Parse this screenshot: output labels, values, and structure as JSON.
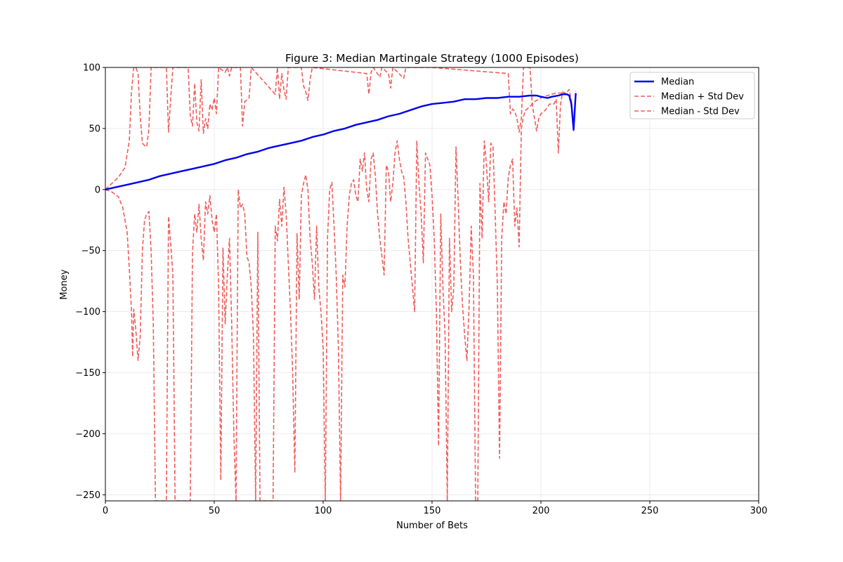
{
  "chart_data": {
    "type": "line",
    "title": "Figure 3: Median Martingale Strategy (1000 Episodes)",
    "xlabel": "Number of Bets",
    "ylabel": "Money",
    "xlim": [
      0,
      300
    ],
    "ylim": [
      -255,
      100
    ],
    "xticks": [
      "0",
      "50",
      "100",
      "150",
      "200",
      "250",
      "300"
    ],
    "yticks": [
      "100",
      "50",
      "0",
      "−50",
      "−100",
      "−150",
      "−200",
      "−250"
    ],
    "grid": true,
    "legend_position": "top-right",
    "colors": {
      "median": "#0000ee",
      "std": "#ee3333"
    },
    "series": [
      {
        "name": "Median",
        "style": "solid",
        "points": [
          [
            0,
            0
          ],
          [
            5,
            2
          ],
          [
            10,
            4
          ],
          [
            15,
            6
          ],
          [
            20,
            8
          ],
          [
            25,
            11
          ],
          [
            30,
            13
          ],
          [
            35,
            15
          ],
          [
            40,
            17
          ],
          [
            45,
            19
          ],
          [
            50,
            21
          ],
          [
            55,
            24
          ],
          [
            60,
            26
          ],
          [
            65,
            29
          ],
          [
            70,
            31
          ],
          [
            75,
            34
          ],
          [
            80,
            36
          ],
          [
            85,
            38
          ],
          [
            90,
            40
          ],
          [
            95,
            43
          ],
          [
            100,
            45
          ],
          [
            105,
            48
          ],
          [
            110,
            50
          ],
          [
            115,
            53
          ],
          [
            120,
            55
          ],
          [
            125,
            57
          ],
          [
            130,
            60
          ],
          [
            135,
            62
          ],
          [
            140,
            65
          ],
          [
            145,
            68
          ],
          [
            150,
            70
          ],
          [
            155,
            71
          ],
          [
            160,
            72
          ],
          [
            165,
            74
          ],
          [
            170,
            74
          ],
          [
            175,
            75
          ],
          [
            180,
            75
          ],
          [
            185,
            76
          ],
          [
            190,
            76
          ],
          [
            195,
            77
          ],
          [
            198,
            77
          ],
          [
            200,
            76
          ],
          [
            203,
            75
          ],
          [
            205,
            76
          ],
          [
            208,
            77
          ],
          [
            210,
            78
          ],
          [
            212,
            78
          ],
          [
            213,
            77
          ],
          [
            214,
            70
          ],
          [
            215,
            49
          ],
          [
            216,
            79
          ]
        ]
      },
      {
        "name": "Median + Std Dev",
        "style": "dashed",
        "points": [
          [
            0,
            0
          ],
          [
            3,
            5
          ],
          [
            6,
            10
          ],
          [
            9,
            18
          ],
          [
            11,
            40
          ],
          [
            12,
            80
          ],
          [
            13,
            100
          ],
          [
            14,
            100
          ],
          [
            15,
            95
          ],
          [
            16,
            60
          ],
          [
            17,
            38
          ],
          [
            18,
            36
          ],
          [
            19,
            35
          ],
          [
            20,
            50
          ],
          [
            21,
            100
          ],
          [
            25,
            100
          ],
          [
            28,
            100
          ],
          [
            29,
            47
          ],
          [
            30,
            75
          ],
          [
            31,
            100
          ],
          [
            38,
            100
          ],
          [
            39,
            60
          ],
          [
            40,
            52
          ],
          [
            41,
            87
          ],
          [
            42,
            55
          ],
          [
            43,
            48
          ],
          [
            44,
            90
          ],
          [
            45,
            46
          ],
          [
            46,
            58
          ],
          [
            47,
            50
          ],
          [
            48,
            70
          ],
          [
            49,
            65
          ],
          [
            50,
            75
          ],
          [
            51,
            62
          ],
          [
            52,
            100
          ],
          [
            55,
            96
          ],
          [
            56,
            100
          ],
          [
            57,
            93
          ],
          [
            58,
            100
          ],
          [
            62,
            100
          ],
          [
            63,
            52
          ],
          [
            64,
            72
          ],
          [
            66,
            75
          ],
          [
            67,
            100
          ],
          [
            78,
            78
          ],
          [
            79,
            100
          ],
          [
            80,
            74
          ],
          [
            81,
            95
          ],
          [
            82,
            82
          ],
          [
            83,
            74
          ],
          [
            84,
            100
          ],
          [
            90,
            100
          ],
          [
            91,
            85
          ],
          [
            92,
            80
          ],
          [
            93,
            73
          ],
          [
            94,
            90
          ],
          [
            95,
            100
          ],
          [
            120,
            95
          ],
          [
            121,
            78
          ],
          [
            122,
            96
          ],
          [
            123,
            100
          ],
          [
            126,
            92
          ],
          [
            127,
            100
          ],
          [
            130,
            95
          ],
          [
            131,
            83
          ],
          [
            132,
            100
          ],
          [
            137,
            91
          ],
          [
            138,
            100
          ],
          [
            143,
            100
          ],
          [
            150,
            100
          ],
          [
            185,
            95
          ],
          [
            186,
            62
          ],
          [
            187,
            66
          ],
          [
            188,
            64
          ],
          [
            189,
            58
          ],
          [
            190,
            47
          ],
          [
            191,
            58
          ],
          [
            192,
            100
          ],
          [
            195,
            100
          ],
          [
            196,
            70
          ],
          [
            198,
            48
          ],
          [
            199,
            58
          ],
          [
            200,
            62
          ],
          [
            202,
            65
          ],
          [
            204,
            70
          ],
          [
            206,
            70
          ],
          [
            207,
            74
          ],
          [
            208,
            30
          ],
          [
            209,
            70
          ],
          [
            210,
            80
          ],
          [
            211,
            79
          ],
          [
            212,
            80
          ],
          [
            213,
            82
          ],
          [
            214,
            72
          ],
          [
            215,
            49
          ],
          [
            216,
            81
          ]
        ]
      },
      {
        "name": "Median - Std Dev",
        "style": "dashed",
        "points": [
          [
            0,
            0
          ],
          [
            3,
            -2
          ],
          [
            6,
            -6
          ],
          [
            8,
            -15
          ],
          [
            10,
            -35
          ],
          [
            11,
            -65
          ],
          [
            12,
            -100
          ],
          [
            12.5,
            -137
          ],
          [
            13,
            -98
          ],
          [
            14,
            -115
          ],
          [
            15,
            -140
          ],
          [
            16,
            -120
          ],
          [
            17,
            -50
          ],
          [
            18,
            -25
          ],
          [
            19,
            -20
          ],
          [
            20,
            -18
          ],
          [
            21,
            -50
          ],
          [
            22,
            -110
          ],
          [
            23,
            -255
          ],
          [
            28,
            -255
          ],
          [
            29,
            -22
          ],
          [
            30,
            -45
          ],
          [
            31,
            -70
          ],
          [
            32,
            -255
          ],
          [
            39,
            -255
          ],
          [
            40,
            -52
          ],
          [
            41,
            -20
          ],
          [
            42,
            -35
          ],
          [
            43,
            -12
          ],
          [
            44,
            -40
          ],
          [
            45,
            -58
          ],
          [
            46,
            -10
          ],
          [
            47,
            -20
          ],
          [
            48,
            -5
          ],
          [
            49,
            -25
          ],
          [
            50,
            -35
          ],
          [
            51,
            -20
          ],
          [
            52,
            -80
          ],
          [
            53,
            -238
          ],
          [
            54,
            -48
          ],
          [
            55,
            -110
          ],
          [
            56,
            -70
          ],
          [
            57,
            -40
          ],
          [
            58,
            -110
          ],
          [
            59,
            -200
          ],
          [
            60,
            -255
          ],
          [
            61,
            0
          ],
          [
            62,
            -15
          ],
          [
            63,
            -12
          ],
          [
            64,
            -20
          ],
          [
            65,
            -55
          ],
          [
            66,
            -60
          ],
          [
            67,
            -80
          ],
          [
            68,
            -120
          ],
          [
            69,
            -255
          ],
          [
            70,
            -35
          ],
          [
            71,
            -255
          ],
          [
            77,
            -255
          ],
          [
            78,
            -30
          ],
          [
            79,
            -42
          ],
          [
            80,
            -8
          ],
          [
            81,
            -30
          ],
          [
            82,
            2
          ],
          [
            83,
            -20
          ],
          [
            84,
            -60
          ],
          [
            85,
            -100
          ],
          [
            86,
            -150
          ],
          [
            87,
            -232
          ],
          [
            88,
            -36
          ],
          [
            89,
            -90
          ],
          [
            90,
            -5
          ],
          [
            91,
            5
          ],
          [
            92,
            12
          ],
          [
            93,
            0
          ],
          [
            94,
            -40
          ],
          [
            95,
            -60
          ],
          [
            96,
            -90
          ],
          [
            97,
            -30
          ],
          [
            98,
            -80
          ],
          [
            99,
            -100
          ],
          [
            100,
            -130
          ],
          [
            101,
            -255
          ],
          [
            102,
            -40
          ],
          [
            103,
            0
          ],
          [
            104,
            6
          ],
          [
            105,
            -30
          ],
          [
            106,
            -70
          ],
          [
            107,
            -130
          ],
          [
            108,
            -255
          ],
          [
            109,
            -70
          ],
          [
            110,
            -80
          ],
          [
            111,
            -30
          ],
          [
            112,
            -5
          ],
          [
            113,
            5
          ],
          [
            114,
            8
          ],
          [
            115,
            -5
          ],
          [
            116,
            -10
          ],
          [
            117,
            25
          ],
          [
            118,
            15
          ],
          [
            119,
            30
          ],
          [
            120,
            0
          ],
          [
            121,
            -10
          ],
          [
            122,
            25
          ],
          [
            123,
            30
          ],
          [
            124,
            10
          ],
          [
            125,
            -20
          ],
          [
            126,
            -40
          ],
          [
            127,
            -55
          ],
          [
            128,
            -70
          ],
          [
            129,
            20
          ],
          [
            130,
            15
          ],
          [
            131,
            -10
          ],
          [
            132,
            5
          ],
          [
            133,
            30
          ],
          [
            134,
            40
          ],
          [
            135,
            25
          ],
          [
            136,
            15
          ],
          [
            137,
            10
          ],
          [
            138,
            -10
          ],
          [
            139,
            -40
          ],
          [
            140,
            -60
          ],
          [
            141,
            -80
          ],
          [
            142,
            -100
          ],
          [
            143,
            40
          ],
          [
            144,
            5
          ],
          [
            145,
            -20
          ],
          [
            146,
            -60
          ],
          [
            147,
            30
          ],
          [
            148,
            25
          ],
          [
            149,
            20
          ],
          [
            150,
            -5
          ],
          [
            151,
            -40
          ],
          [
            152,
            -100
          ],
          [
            153,
            -210
          ],
          [
            154,
            -20
          ],
          [
            155,
            -80
          ],
          [
            156,
            -120
          ],
          [
            157,
            -255
          ],
          [
            158,
            -40
          ],
          [
            159,
            -100
          ],
          [
            160,
            -80
          ],
          [
            161,
            35
          ],
          [
            162,
            -10
          ],
          [
            163,
            -60
          ],
          [
            164,
            -95
          ],
          [
            165,
            -120
          ],
          [
            166,
            -140
          ],
          [
            167,
            -96
          ],
          [
            168,
            -30
          ],
          [
            169,
            -70
          ],
          [
            170,
            -255
          ],
          [
            171,
            -255
          ],
          [
            172,
            5
          ],
          [
            173,
            -40
          ],
          [
            174,
            40
          ],
          [
            175,
            20
          ],
          [
            176,
            -10
          ],
          [
            177,
            38
          ],
          [
            178,
            35
          ],
          [
            179,
            -20
          ],
          [
            180,
            -80
          ],
          [
            181,
            -220
          ],
          [
            182,
            -40
          ],
          [
            183,
            -10
          ],
          [
            184,
            -20
          ],
          [
            185,
            10
          ],
          [
            186,
            20
          ],
          [
            187,
            25
          ],
          [
            188,
            -30
          ],
          [
            189,
            -15
          ],
          [
            190,
            -47
          ],
          [
            191,
            50
          ],
          [
            192,
            60
          ],
          [
            193,
            65
          ],
          [
            195,
            68
          ],
          [
            197,
            72
          ],
          [
            199,
            74
          ],
          [
            201,
            76
          ],
          [
            203,
            77
          ],
          [
            205,
            78
          ],
          [
            207,
            79
          ],
          [
            209,
            79
          ],
          [
            211,
            79
          ],
          [
            213,
            76
          ],
          [
            214,
            68
          ],
          [
            215,
            48
          ],
          [
            216,
            78
          ]
        ]
      }
    ]
  }
}
